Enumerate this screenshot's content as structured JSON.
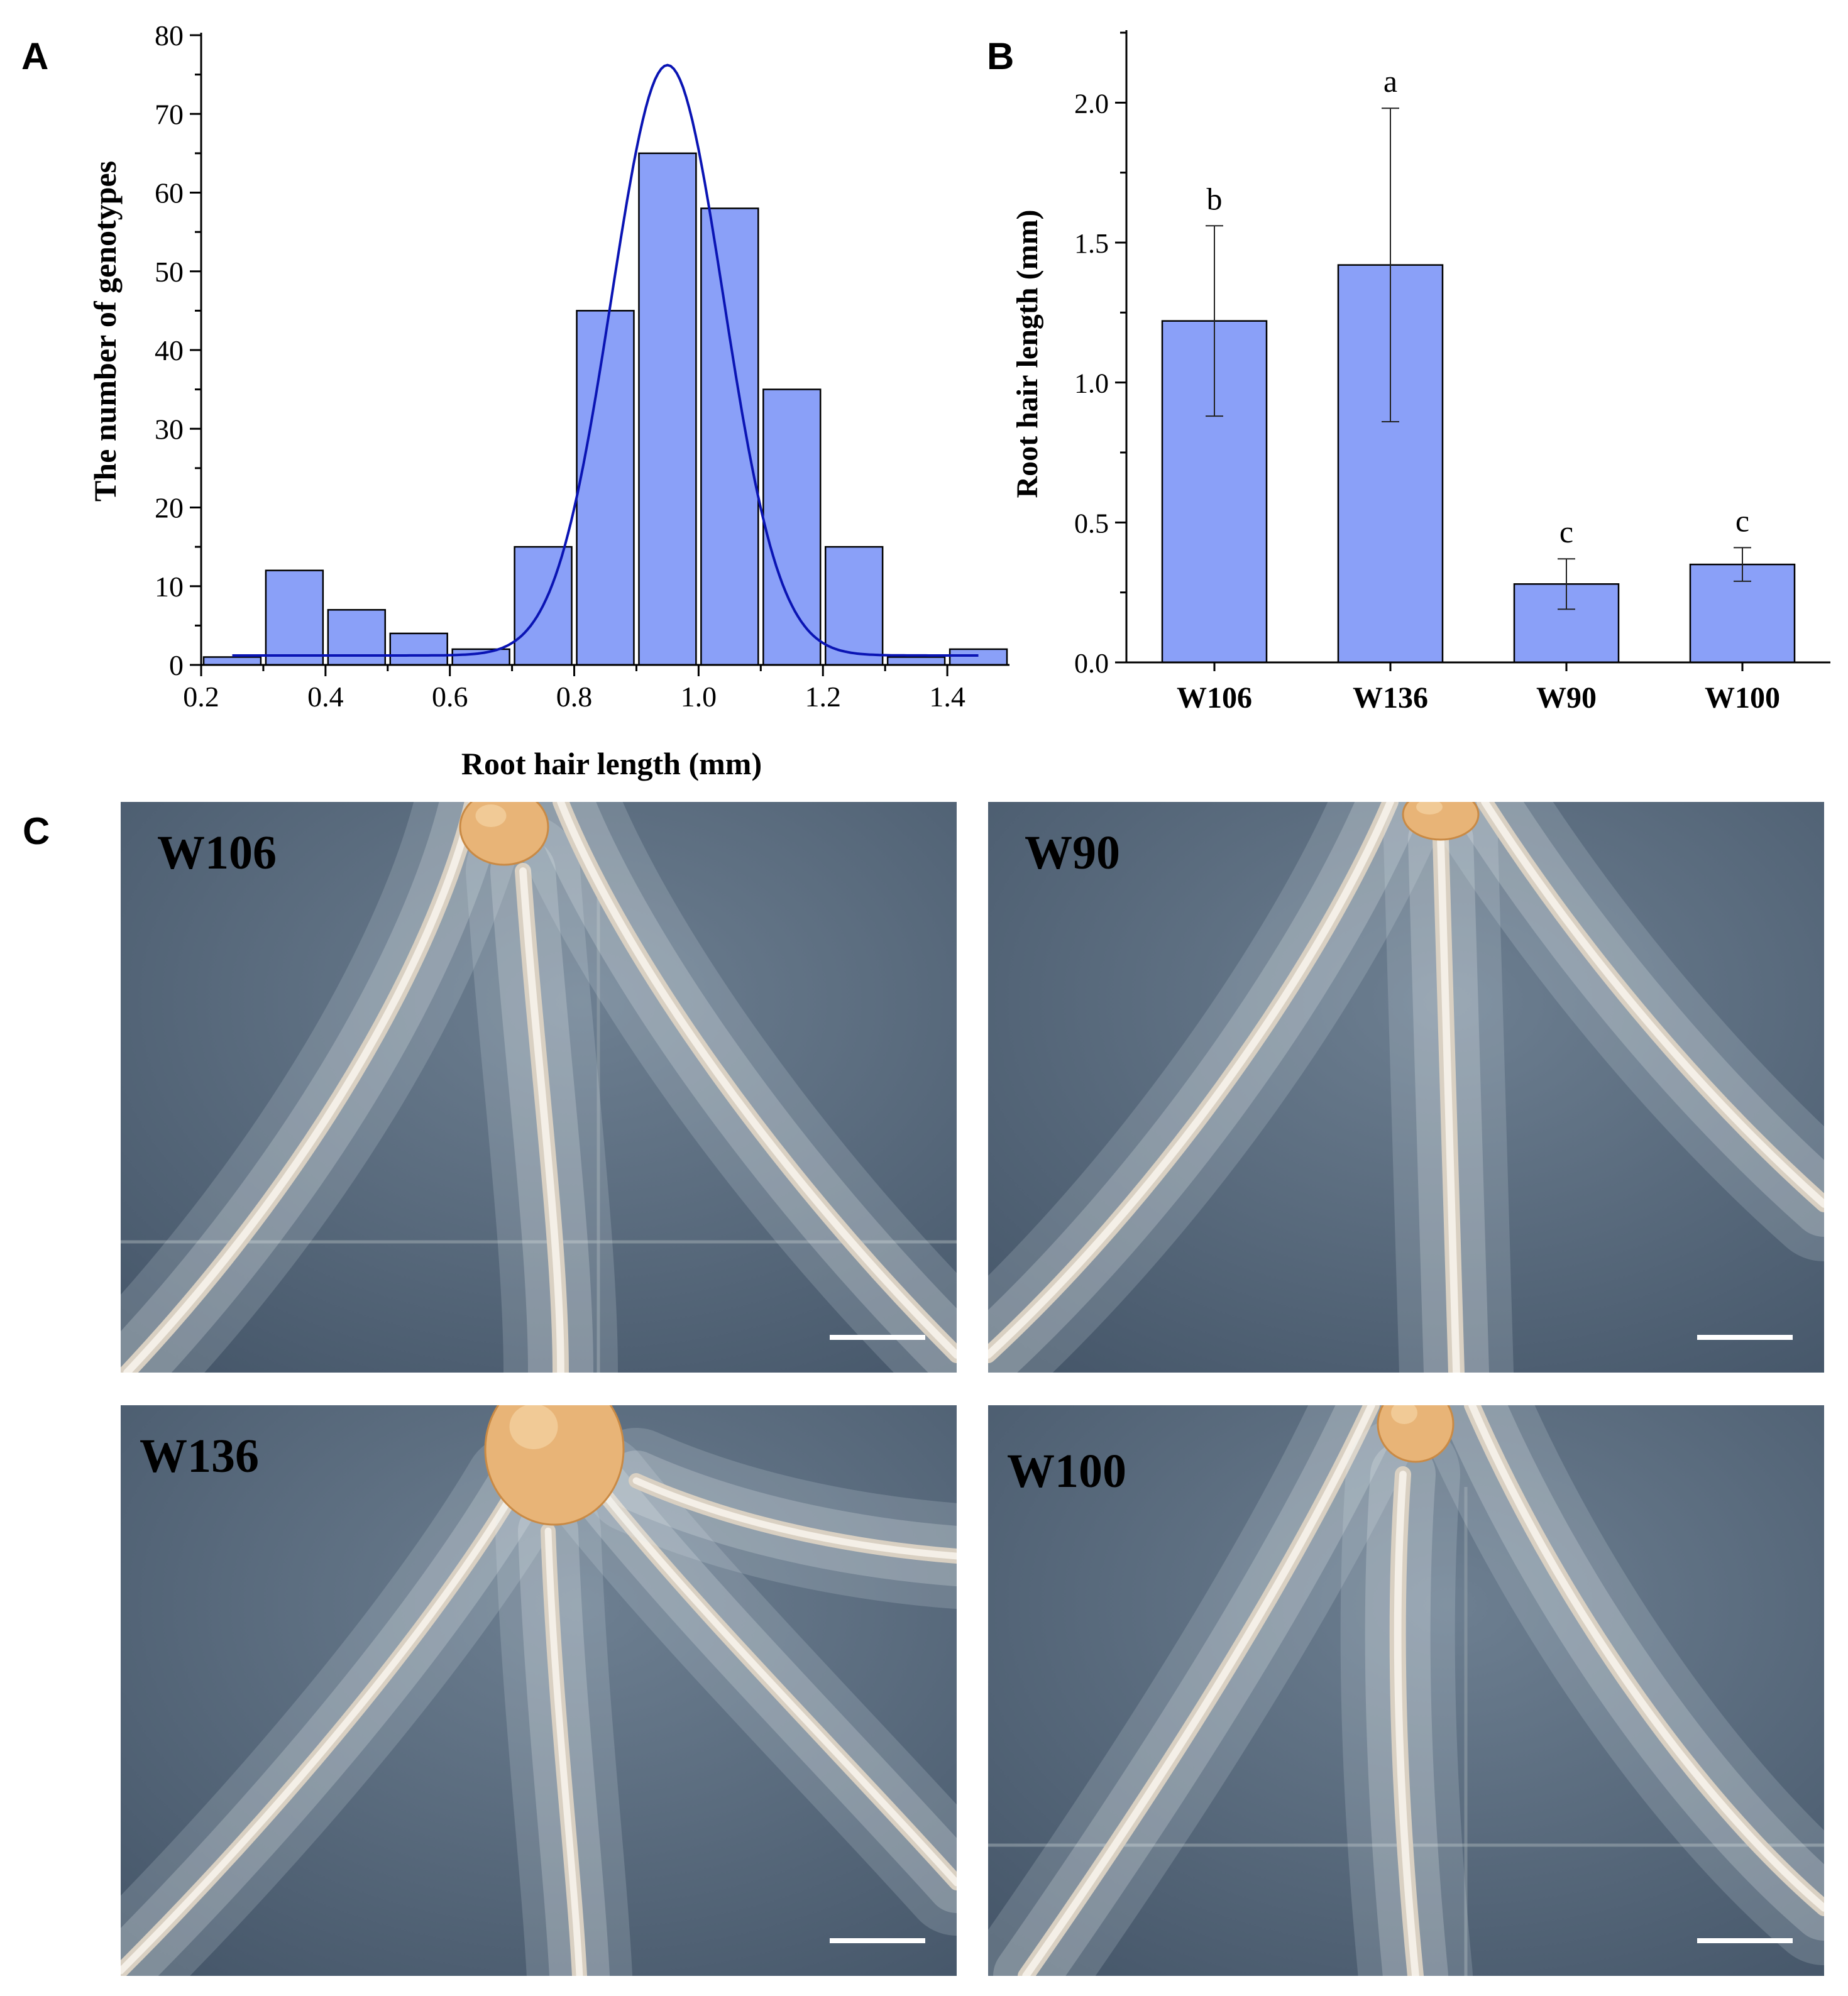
{
  "panels": {
    "a": "A",
    "b": "B",
    "c": "C"
  },
  "colors": {
    "bar": "#8aa0f8",
    "curve": "#0a14b4",
    "plate": "#5d6f82",
    "root": "#ece6dc",
    "seed": "#e8b477"
  },
  "chart_data": [
    {
      "type": "bar",
      "title": "",
      "xlabel": "Root hair length (mm)",
      "ylabel": "The number of genotypes",
      "xlim": [
        0.2,
        1.5
      ],
      "ylim": [
        0,
        80
      ],
      "xticks": [
        "0.2",
        "0.4",
        "0.6",
        "0.8",
        "1.0",
        "1.2",
        "1.4"
      ],
      "yticks": [
        "0",
        "10",
        "20",
        "30",
        "40",
        "50",
        "60",
        "70",
        "80"
      ],
      "bins": [
        {
          "start": 0.2,
          "end": 0.3,
          "count": 1
        },
        {
          "start": 0.3,
          "end": 0.4,
          "count": 12
        },
        {
          "start": 0.4,
          "end": 0.5,
          "count": 7
        },
        {
          "start": 0.5,
          "end": 0.6,
          "count": 4
        },
        {
          "start": 0.6,
          "end": 0.7,
          "count": 2
        },
        {
          "start": 0.7,
          "end": 0.8,
          "count": 15
        },
        {
          "start": 0.8,
          "end": 0.9,
          "count": 45
        },
        {
          "start": 0.9,
          "end": 1.0,
          "count": 65
        },
        {
          "start": 1.0,
          "end": 1.1,
          "count": 58
        },
        {
          "start": 1.1,
          "end": 1.2,
          "count": 35
        },
        {
          "start": 1.2,
          "end": 1.3,
          "count": 15
        },
        {
          "start": 1.3,
          "end": 1.4,
          "count": 1
        },
        {
          "start": 1.4,
          "end": 1.5,
          "count": 2
        }
      ],
      "fit": {
        "type": "gaussian",
        "baseline": 1.2,
        "amplitude": 75,
        "mean": 0.95,
        "sd": 0.09
      }
    },
    {
      "type": "bar",
      "title": "",
      "xlabel": "",
      "ylabel": "Root hair length (mm)",
      "ylim": [
        0,
        2.25
      ],
      "yticks": [
        "0.0",
        "0.5",
        "1.0",
        "1.5",
        "2.0"
      ],
      "categories": [
        "W106",
        "W136",
        "W90",
        "W100"
      ],
      "values": [
        1.22,
        1.42,
        0.28,
        0.35
      ],
      "errors": [
        0.34,
        0.56,
        0.09,
        0.06
      ],
      "letters": [
        "b",
        "a",
        "c",
        "c"
      ]
    }
  ],
  "photos": [
    {
      "label": "W106"
    },
    {
      "label": "W90"
    },
    {
      "label": "W136"
    },
    {
      "label": "W100"
    }
  ]
}
